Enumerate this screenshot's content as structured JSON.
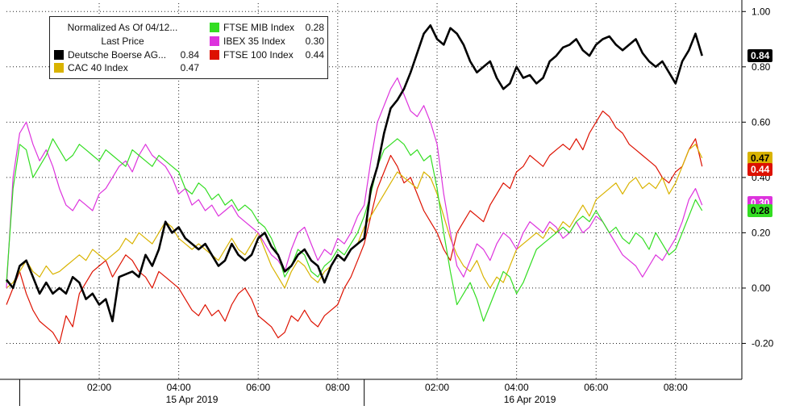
{
  "legend": {
    "header_line1": "Normalized As Of 04/12...",
    "header_line2": "Last Price",
    "items": [
      {
        "name": "Deutsche Boerse AG...",
        "value": "0.84",
        "color": "#000000"
      },
      {
        "name": "CAC 40 Index",
        "value": "0.47",
        "color": "#d9b300"
      },
      {
        "name": "FTSE MIB Index",
        "value": "0.28",
        "color": "#33dd22"
      },
      {
        "name": "IBEX 35 Index",
        "value": "0.30",
        "color": "#dd33dd"
      },
      {
        "name": "FTSE 100 Index",
        "value": "0.44",
        "color": "#dd1100"
      }
    ]
  },
  "value_tags": [
    {
      "text": "0.84",
      "bg": "#000000",
      "fg": "#ffffff",
      "y": 0.84
    },
    {
      "text": "0.47",
      "bg": "#d9b300",
      "fg": "#000000",
      "y": 0.47
    },
    {
      "text": "0.44",
      "bg": "#dd1100",
      "fg": "#ffffff",
      "y": 0.43
    },
    {
      "text": "0.30",
      "bg": "#dd33dd",
      "fg": "#ffffff",
      "y": 0.31
    },
    {
      "text": "0.28",
      "bg": "#33dd22",
      "fg": "#000000",
      "y": 0.28
    }
  ],
  "chart_data": {
    "type": "line",
    "title": "",
    "ylim": [
      -0.33,
      1.03
    ],
    "xlim": [
      0,
      222
    ],
    "yticks": [
      1.0,
      0.8,
      0.6,
      0.4,
      0.2,
      0.0,
      -0.2
    ],
    "ytick_labels": [
      "1.00",
      "0.80",
      "0.60",
      "0.40",
      "0.20",
      "0.00",
      "-0.20"
    ],
    "xticks": [
      {
        "x": 28,
        "label": "02:00"
      },
      {
        "x": 52,
        "label": "04:00"
      },
      {
        "x": 76,
        "label": "06:00"
      },
      {
        "x": 100,
        "label": "08:00"
      },
      {
        "x": 130,
        "label": "02:00"
      },
      {
        "x": 154,
        "label": "04:00"
      },
      {
        "x": 178,
        "label": "06:00"
      },
      {
        "x": 202,
        "label": "08:00"
      }
    ],
    "day_separators": [
      4,
      108
    ],
    "date_labels": [
      {
        "x": 56,
        "label": "15 Apr 2019"
      },
      {
        "x": 158,
        "label": "16 Apr 2019"
      }
    ],
    "grid": true,
    "legend_position": "top-left",
    "series": [
      {
        "name": "Deutsche Boerse AG...",
        "color": "#000000",
        "width": 2.6,
        "x": [
          0,
          2,
          4,
          6,
          8,
          10,
          12,
          14,
          16,
          18,
          20,
          22,
          24,
          26,
          28,
          30,
          32,
          34,
          36,
          38,
          40,
          42,
          44,
          46,
          48,
          50,
          52,
          54,
          56,
          58,
          60,
          62,
          64,
          66,
          68,
          70,
          72,
          74,
          76,
          78,
          80,
          82,
          84,
          86,
          88,
          90,
          92,
          94,
          96,
          98,
          100,
          102,
          104,
          106,
          108,
          110,
          112,
          114,
          116,
          118,
          120,
          122,
          124,
          126,
          128,
          130,
          132,
          134,
          136,
          138,
          140,
          142,
          144,
          146,
          148,
          150,
          152,
          154,
          156,
          158,
          160,
          162,
          164,
          166,
          168,
          170,
          172,
          174,
          176,
          178,
          180,
          182,
          184,
          186,
          188,
          190,
          192,
          194,
          196,
          198,
          200,
          202,
          204,
          206,
          208,
          210
        ],
        "y": [
          0.03,
          0.0,
          0.08,
          0.1,
          0.04,
          -0.02,
          0.02,
          -0.02,
          0.0,
          -0.02,
          0.04,
          0.02,
          -0.04,
          -0.02,
          -0.06,
          -0.04,
          -0.12,
          0.04,
          0.05,
          0.06,
          0.04,
          0.12,
          0.08,
          0.14,
          0.24,
          0.2,
          0.22,
          0.18,
          0.16,
          0.14,
          0.16,
          0.12,
          0.08,
          0.1,
          0.16,
          0.12,
          0.1,
          0.12,
          0.18,
          0.2,
          0.15,
          0.12,
          0.06,
          0.08,
          0.12,
          0.14,
          0.1,
          0.08,
          0.02,
          0.08,
          0.12,
          0.1,
          0.14,
          0.16,
          0.18,
          0.36,
          0.44,
          0.56,
          0.65,
          0.68,
          0.72,
          0.78,
          0.85,
          0.92,
          0.95,
          0.9,
          0.88,
          0.94,
          0.92,
          0.88,
          0.82,
          0.78,
          0.8,
          0.82,
          0.76,
          0.72,
          0.74,
          0.8,
          0.76,
          0.77,
          0.74,
          0.76,
          0.82,
          0.84,
          0.87,
          0.88,
          0.9,
          0.86,
          0.84,
          0.88,
          0.9,
          0.91,
          0.88,
          0.86,
          0.88,
          0.9,
          0.85,
          0.82,
          0.8,
          0.82,
          0.78,
          0.74,
          0.82,
          0.86,
          0.92,
          0.84
        ]
      },
      {
        "name": "CAC 40 Index",
        "color": "#d9b300",
        "width": 1.2,
        "x": [
          0,
          2,
          4,
          6,
          8,
          10,
          12,
          14,
          16,
          18,
          20,
          22,
          24,
          26,
          28,
          30,
          32,
          34,
          36,
          38,
          40,
          42,
          44,
          46,
          48,
          50,
          52,
          54,
          56,
          58,
          60,
          62,
          64,
          66,
          68,
          70,
          72,
          74,
          76,
          78,
          80,
          82,
          84,
          86,
          88,
          90,
          92,
          94,
          96,
          98,
          100,
          102,
          104,
          106,
          108,
          110,
          112,
          114,
          116,
          118,
          120,
          122,
          124,
          126,
          128,
          130,
          132,
          134,
          136,
          138,
          140,
          142,
          144,
          146,
          148,
          150,
          152,
          154,
          156,
          158,
          160,
          162,
          164,
          166,
          168,
          170,
          172,
          174,
          176,
          178,
          180,
          182,
          184,
          186,
          188,
          190,
          192,
          194,
          196,
          198,
          200,
          202,
          204,
          206,
          208,
          210
        ],
        "y": [
          0.0,
          0.02,
          0.06,
          0.1,
          0.06,
          0.04,
          0.08,
          0.05,
          0.06,
          0.08,
          0.1,
          0.12,
          0.1,
          0.14,
          0.12,
          0.1,
          0.12,
          0.14,
          0.18,
          0.16,
          0.2,
          0.18,
          0.16,
          0.2,
          0.24,
          0.22,
          0.18,
          0.16,
          0.14,
          0.16,
          0.14,
          0.12,
          0.1,
          0.14,
          0.18,
          0.14,
          0.12,
          0.16,
          0.2,
          0.14,
          0.08,
          0.04,
          0.0,
          0.06,
          0.1,
          0.08,
          0.04,
          0.02,
          0.06,
          0.08,
          0.12,
          0.1,
          0.14,
          0.16,
          0.22,
          0.26,
          0.3,
          0.34,
          0.38,
          0.42,
          0.4,
          0.38,
          0.36,
          0.42,
          0.4,
          0.34,
          0.26,
          0.18,
          0.12,
          0.08,
          0.06,
          0.1,
          0.04,
          0.0,
          0.04,
          0.02,
          0.08,
          0.14,
          0.16,
          0.18,
          0.2,
          0.18,
          0.22,
          0.2,
          0.24,
          0.22,
          0.26,
          0.3,
          0.26,
          0.32,
          0.34,
          0.36,
          0.38,
          0.34,
          0.38,
          0.4,
          0.36,
          0.38,
          0.36,
          0.4,
          0.34,
          0.38,
          0.44,
          0.5,
          0.52,
          0.47
        ]
      },
      {
        "name": "FTSE MIB Index",
        "color": "#33dd22",
        "width": 1.2,
        "x": [
          0,
          2,
          4,
          6,
          8,
          10,
          12,
          14,
          16,
          18,
          20,
          22,
          24,
          26,
          28,
          30,
          32,
          34,
          36,
          38,
          40,
          42,
          44,
          46,
          48,
          50,
          52,
          54,
          56,
          58,
          60,
          62,
          64,
          66,
          68,
          70,
          72,
          74,
          76,
          78,
          80,
          82,
          84,
          86,
          88,
          90,
          92,
          94,
          96,
          98,
          100,
          102,
          104,
          106,
          108,
          110,
          112,
          114,
          116,
          118,
          120,
          122,
          124,
          126,
          128,
          130,
          132,
          134,
          136,
          138,
          140,
          142,
          144,
          146,
          148,
          150,
          152,
          154,
          156,
          158,
          160,
          162,
          164,
          166,
          168,
          170,
          172,
          174,
          176,
          178,
          180,
          182,
          184,
          186,
          188,
          190,
          192,
          194,
          196,
          198,
          200,
          202,
          204,
          206,
          208,
          210
        ],
        "y": [
          0.02,
          0.36,
          0.52,
          0.5,
          0.4,
          0.44,
          0.48,
          0.54,
          0.5,
          0.46,
          0.48,
          0.52,
          0.5,
          0.48,
          0.46,
          0.5,
          0.48,
          0.46,
          0.44,
          0.5,
          0.48,
          0.46,
          0.44,
          0.48,
          0.46,
          0.44,
          0.42,
          0.36,
          0.34,
          0.38,
          0.36,
          0.32,
          0.34,
          0.3,
          0.32,
          0.28,
          0.3,
          0.28,
          0.24,
          0.22,
          0.18,
          0.12,
          0.04,
          0.08,
          0.14,
          0.12,
          0.06,
          0.04,
          0.08,
          0.1,
          0.14,
          0.12,
          0.16,
          0.2,
          0.26,
          0.34,
          0.44,
          0.5,
          0.52,
          0.54,
          0.52,
          0.48,
          0.5,
          0.46,
          0.48,
          0.36,
          0.2,
          0.06,
          -0.06,
          -0.02,
          0.02,
          -0.04,
          -0.12,
          -0.06,
          0.0,
          0.06,
          0.04,
          -0.02,
          0.02,
          0.08,
          0.14,
          0.16,
          0.18,
          0.2,
          0.22,
          0.2,
          0.24,
          0.26,
          0.24,
          0.28,
          0.24,
          0.2,
          0.22,
          0.18,
          0.16,
          0.2,
          0.18,
          0.14,
          0.2,
          0.16,
          0.12,
          0.14,
          0.2,
          0.26,
          0.32,
          0.28
        ]
      },
      {
        "name": "IBEX 35 Index",
        "color": "#dd33dd",
        "width": 1.2,
        "x": [
          0,
          2,
          4,
          6,
          8,
          10,
          12,
          14,
          16,
          18,
          20,
          22,
          24,
          26,
          28,
          30,
          32,
          34,
          36,
          38,
          40,
          42,
          44,
          46,
          48,
          50,
          52,
          54,
          56,
          58,
          60,
          62,
          64,
          66,
          68,
          70,
          72,
          74,
          76,
          78,
          80,
          82,
          84,
          86,
          88,
          90,
          92,
          94,
          96,
          98,
          100,
          102,
          104,
          106,
          108,
          110,
          112,
          114,
          116,
          118,
          120,
          122,
          124,
          126,
          128,
          130,
          132,
          134,
          136,
          138,
          140,
          142,
          144,
          146,
          148,
          150,
          152,
          154,
          156,
          158,
          160,
          162,
          164,
          166,
          168,
          170,
          172,
          174,
          176,
          178,
          180,
          182,
          184,
          186,
          188,
          190,
          192,
          194,
          196,
          198,
          200,
          202,
          204,
          206,
          208,
          210
        ],
        "y": [
          0.0,
          0.4,
          0.56,
          0.6,
          0.52,
          0.46,
          0.5,
          0.44,
          0.36,
          0.3,
          0.28,
          0.32,
          0.3,
          0.28,
          0.34,
          0.36,
          0.4,
          0.44,
          0.46,
          0.42,
          0.48,
          0.52,
          0.48,
          0.46,
          0.44,
          0.4,
          0.34,
          0.36,
          0.3,
          0.32,
          0.28,
          0.3,
          0.26,
          0.28,
          0.3,
          0.26,
          0.24,
          0.22,
          0.2,
          0.16,
          0.12,
          0.1,
          0.06,
          0.14,
          0.2,
          0.22,
          0.16,
          0.1,
          0.14,
          0.12,
          0.18,
          0.16,
          0.2,
          0.26,
          0.3,
          0.46,
          0.6,
          0.66,
          0.72,
          0.76,
          0.7,
          0.64,
          0.62,
          0.66,
          0.6,
          0.52,
          0.34,
          0.2,
          0.08,
          0.04,
          0.1,
          0.16,
          0.14,
          0.1,
          0.16,
          0.2,
          0.18,
          0.14,
          0.2,
          0.24,
          0.22,
          0.2,
          0.24,
          0.22,
          0.18,
          0.2,
          0.24,
          0.2,
          0.22,
          0.26,
          0.24,
          0.2,
          0.16,
          0.12,
          0.1,
          0.08,
          0.04,
          0.08,
          0.12,
          0.1,
          0.14,
          0.18,
          0.24,
          0.32,
          0.36,
          0.3
        ]
      },
      {
        "name": "FTSE 100 Index",
        "color": "#dd1100",
        "width": 1.2,
        "x": [
          0,
          2,
          4,
          6,
          8,
          10,
          12,
          14,
          16,
          18,
          20,
          22,
          24,
          26,
          28,
          30,
          32,
          34,
          36,
          38,
          40,
          42,
          44,
          46,
          48,
          50,
          52,
          54,
          56,
          58,
          60,
          62,
          64,
          66,
          68,
          70,
          72,
          74,
          76,
          78,
          80,
          82,
          84,
          86,
          88,
          90,
          92,
          94,
          96,
          98,
          100,
          102,
          104,
          106,
          108,
          110,
          112,
          114,
          116,
          118,
          120,
          122,
          124,
          126,
          128,
          130,
          132,
          134,
          136,
          138,
          140,
          142,
          144,
          146,
          148,
          150,
          152,
          154,
          156,
          158,
          160,
          162,
          164,
          166,
          168,
          170,
          172,
          174,
          176,
          178,
          180,
          182,
          184,
          186,
          188,
          190,
          192,
          194,
          196,
          198,
          200,
          202,
          204,
          206,
          208,
          210
        ],
        "y": [
          -0.06,
          0.0,
          0.06,
          -0.02,
          -0.08,
          -0.12,
          -0.14,
          -0.16,
          -0.2,
          -0.1,
          -0.14,
          -0.02,
          0.02,
          0.06,
          0.08,
          0.1,
          0.04,
          0.08,
          0.12,
          0.1,
          0.06,
          0.04,
          0.0,
          0.06,
          0.04,
          0.02,
          0.0,
          -0.04,
          -0.08,
          -0.1,
          -0.06,
          -0.1,
          -0.08,
          -0.12,
          -0.06,
          -0.02,
          0.0,
          -0.04,
          -0.1,
          -0.12,
          -0.14,
          -0.18,
          -0.16,
          -0.1,
          -0.12,
          -0.08,
          -0.12,
          -0.14,
          -0.1,
          -0.08,
          -0.06,
          0.0,
          0.04,
          0.1,
          0.16,
          0.26,
          0.36,
          0.42,
          0.48,
          0.44,
          0.38,
          0.4,
          0.34,
          0.28,
          0.24,
          0.2,
          0.14,
          0.1,
          0.2,
          0.24,
          0.28,
          0.26,
          0.24,
          0.3,
          0.34,
          0.38,
          0.36,
          0.42,
          0.44,
          0.48,
          0.46,
          0.44,
          0.48,
          0.5,
          0.52,
          0.5,
          0.54,
          0.5,
          0.56,
          0.6,
          0.64,
          0.62,
          0.58,
          0.56,
          0.52,
          0.5,
          0.48,
          0.46,
          0.44,
          0.4,
          0.38,
          0.42,
          0.44,
          0.5,
          0.54,
          0.44
        ]
      }
    ]
  }
}
